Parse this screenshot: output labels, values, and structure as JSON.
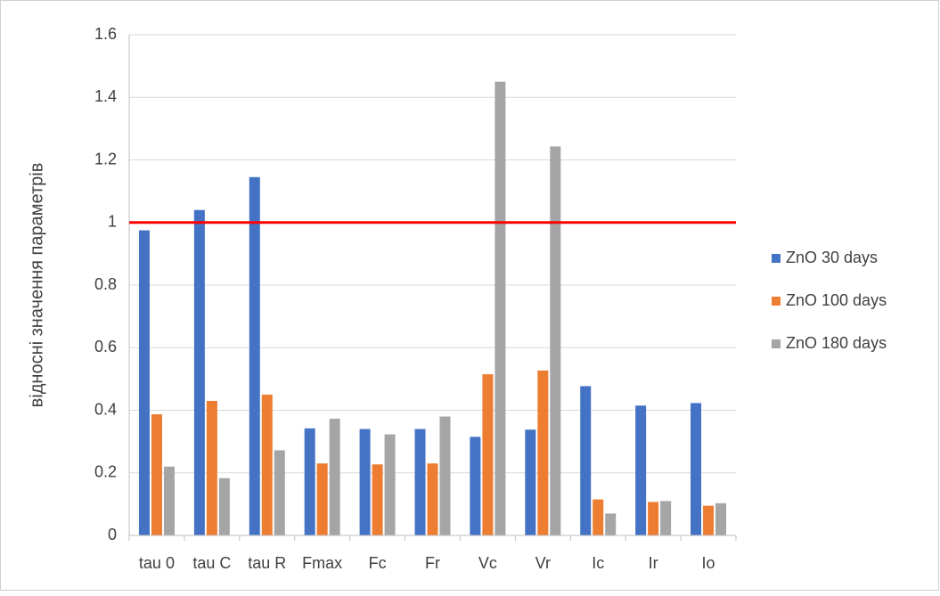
{
  "chart_data": {
    "type": "bar",
    "y_label": "відносні значення параметрів",
    "categories": [
      "tau 0",
      "tau C",
      "tau R",
      "Fmax",
      "Fc",
      "Fr",
      "Vc",
      "Vr",
      "Ic",
      "Ir",
      "Io"
    ],
    "series": [
      {
        "name": "ZnO 30 days",
        "color": "#4472c4",
        "values": [
          0.975,
          1.04,
          1.145,
          0.342,
          0.34,
          0.34,
          0.315,
          0.338,
          0.477,
          0.415,
          0.423
        ]
      },
      {
        "name": "ZnO 100 days",
        "color": "#ed7d31",
        "values": [
          0.387,
          0.43,
          0.45,
          0.23,
          0.227,
          0.23,
          0.515,
          0.527,
          0.115,
          0.107,
          0.095
        ]
      },
      {
        "name": "ZnO 180 days",
        "color": "#a5a5a5",
        "values": [
          0.22,
          0.183,
          0.272,
          0.373,
          0.323,
          0.38,
          1.45,
          1.243,
          0.07,
          0.11,
          0.103
        ]
      }
    ],
    "reference_line": {
      "value": 1,
      "color": "#ff0000"
    },
    "ylim": [
      0,
      1.6
    ],
    "yticks": [
      0,
      0.2,
      0.4,
      0.6,
      0.8,
      1,
      1.2,
      1.4,
      1.6
    ],
    "grid": true,
    "legend": "right"
  }
}
